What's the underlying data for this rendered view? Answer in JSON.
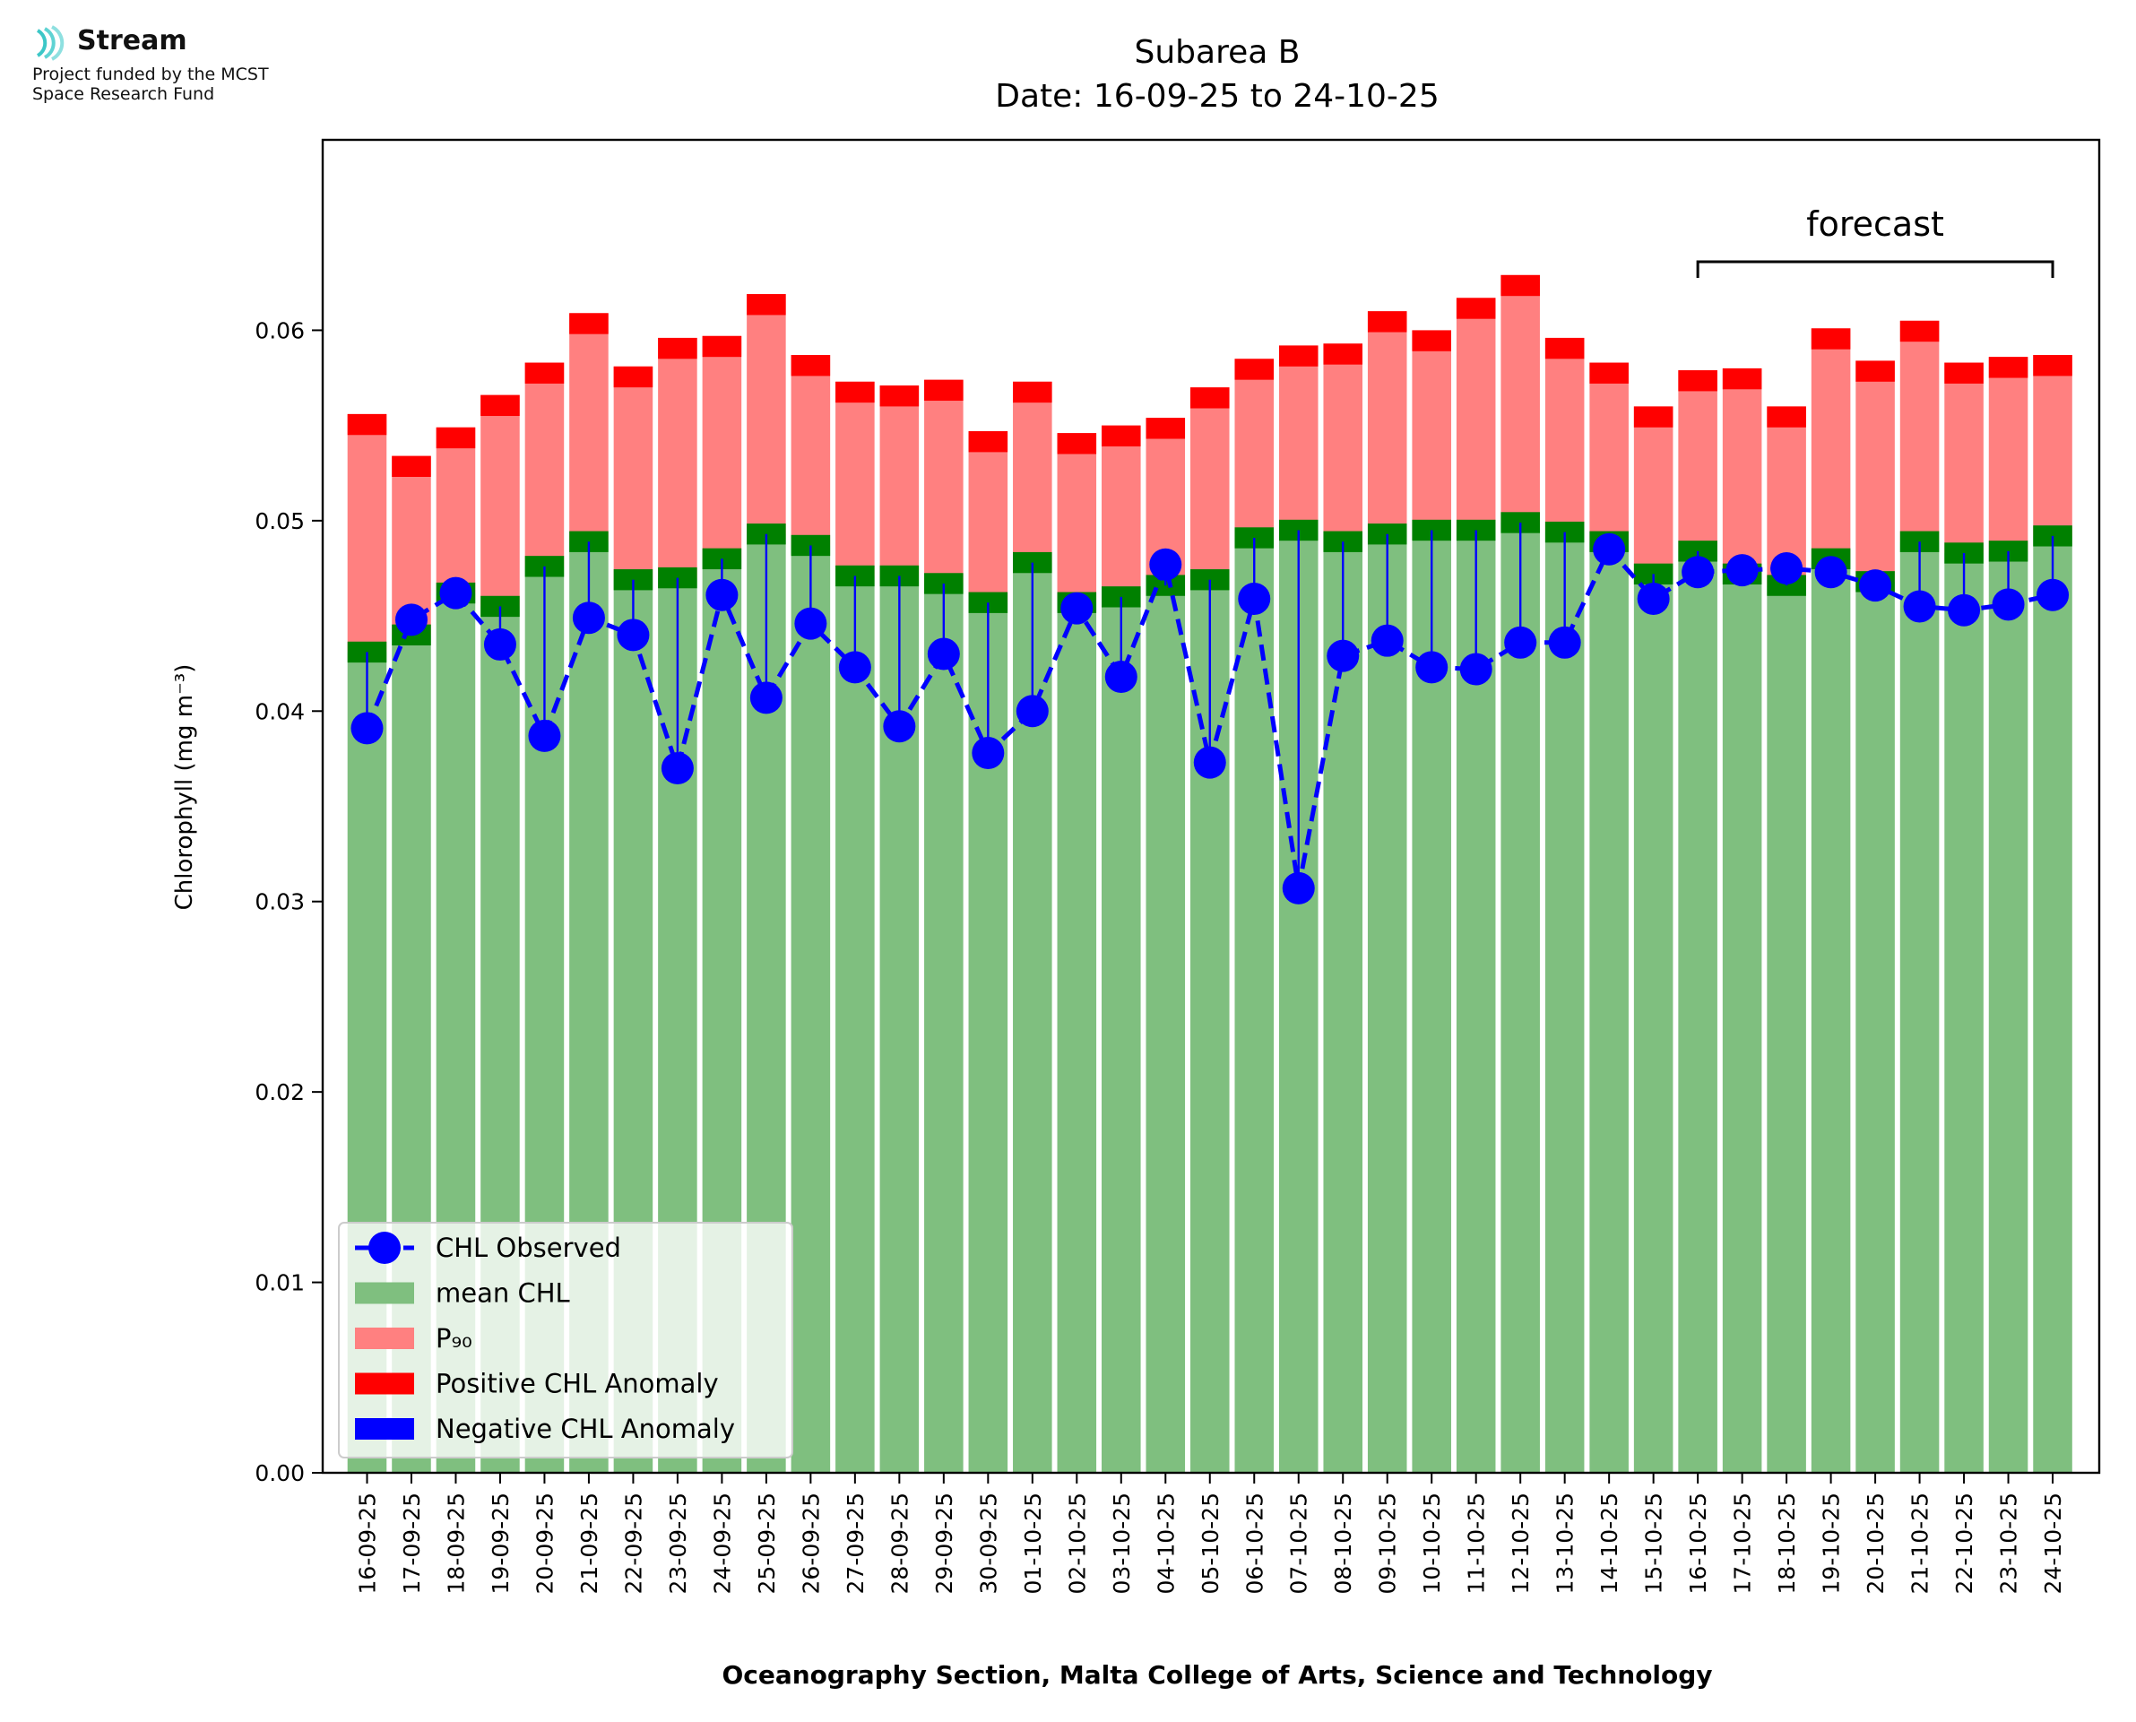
{
  "logo": {
    "name": "Stream",
    "line1": "Project funded by the MCST",
    "line2": "Space Research Fund"
  },
  "chart_data": {
    "type": "bar",
    "title": "Subarea B",
    "subtitle": "Date: 16-09-25 to 24-10-25",
    "ylabel": "Chlorophyll (mg m⁻³)",
    "xlabel": "Oceanography Section, Malta College of Arts, Science and Technology",
    "ylim": [
      0,
      0.07
    ],
    "yticks": [
      0.0,
      0.01,
      0.02,
      0.03,
      0.04,
      0.05,
      0.06
    ],
    "ytick_labels": [
      "0.00",
      "0.01",
      "0.02",
      "0.03",
      "0.04",
      "0.05",
      "0.06"
    ],
    "grid": false,
    "legend_position": "bottom-left",
    "annotation": {
      "text": "forecast",
      "from": "16-10-25",
      "to": "24-10-25"
    },
    "categories": [
      "16-09-25",
      "17-09-25",
      "18-09-25",
      "19-09-25",
      "20-09-25",
      "21-09-25",
      "22-09-25",
      "23-09-25",
      "24-09-25",
      "25-09-25",
      "26-09-25",
      "27-09-25",
      "28-09-25",
      "29-09-25",
      "30-09-25",
      "01-10-25",
      "02-10-25",
      "03-10-25",
      "04-10-25",
      "05-10-25",
      "06-10-25",
      "07-10-25",
      "08-10-25",
      "09-10-25",
      "10-10-25",
      "11-10-25",
      "12-10-25",
      "13-10-25",
      "14-10-25",
      "15-10-25",
      "16-10-25",
      "17-10-25",
      "18-10-25",
      "19-10-25",
      "20-10-25",
      "21-10-25",
      "22-10-25",
      "23-10-25",
      "24-10-25"
    ],
    "series": [
      {
        "name": "CHL Observed",
        "color": "#0000ff",
        "values": [
          0.0391,
          0.0448,
          0.0462,
          0.0435,
          0.0387,
          0.0449,
          0.044,
          0.037,
          0.0461,
          0.0407,
          0.0446,
          0.0423,
          0.0392,
          0.043,
          0.0378,
          0.04,
          0.0454,
          0.0418,
          0.0477,
          0.0373,
          0.0459,
          0.0307,
          0.0429,
          0.0437,
          0.0423,
          0.0422,
          0.0436,
          0.0436,
          0.0485,
          0.0459,
          0.0473,
          0.0474,
          0.0475,
          0.0473,
          0.0466,
          0.0455,
          0.0453,
          0.0456,
          0.0461
        ]
      },
      {
        "name": "mean CHL",
        "color": "#7fbf7f",
        "values": [
          0.0431,
          0.044,
          0.0462,
          0.0455,
          0.0476,
          0.0489,
          0.0469,
          0.047,
          0.048,
          0.0493,
          0.0487,
          0.0471,
          0.0471,
          0.0467,
          0.0457,
          0.0478,
          0.0457,
          0.046,
          0.0466,
          0.0469,
          0.0491,
          0.0495,
          0.0489,
          0.0493,
          0.0495,
          0.0495,
          0.0499,
          0.0494,
          0.0489,
          0.0472,
          0.0484,
          0.0472,
          0.0466,
          0.048,
          0.0468,
          0.0489,
          0.0483,
          0.0484,
          0.0492
        ]
      },
      {
        "name": "P₉₀",
        "color": "#ff8080",
        "values": [
          0.0556,
          0.0534,
          0.0549,
          0.0566,
          0.0583,
          0.0609,
          0.0581,
          0.0596,
          0.0597,
          0.0619,
          0.0587,
          0.0573,
          0.0571,
          0.0574,
          0.0547,
          0.0573,
          0.0546,
          0.055,
          0.0554,
          0.057,
          0.0585,
          0.0592,
          0.0593,
          0.061,
          0.06,
          0.0617,
          0.0629,
          0.0596,
          0.0583,
          0.056,
          0.0579,
          0.058,
          0.056,
          0.0601,
          0.0584,
          0.0605,
          0.0583,
          0.0586,
          0.0587
        ]
      }
    ],
    "legend": [
      "CHL Observed",
      "mean CHL",
      "P₉₀",
      "Positive CHL Anomaly",
      "Negative CHL Anomaly"
    ],
    "colors": {
      "positive_anomaly": "#ff0000",
      "negative_anomaly": "#0000ff",
      "mean_cap": "#008000",
      "observed": "#0000ff"
    }
  }
}
